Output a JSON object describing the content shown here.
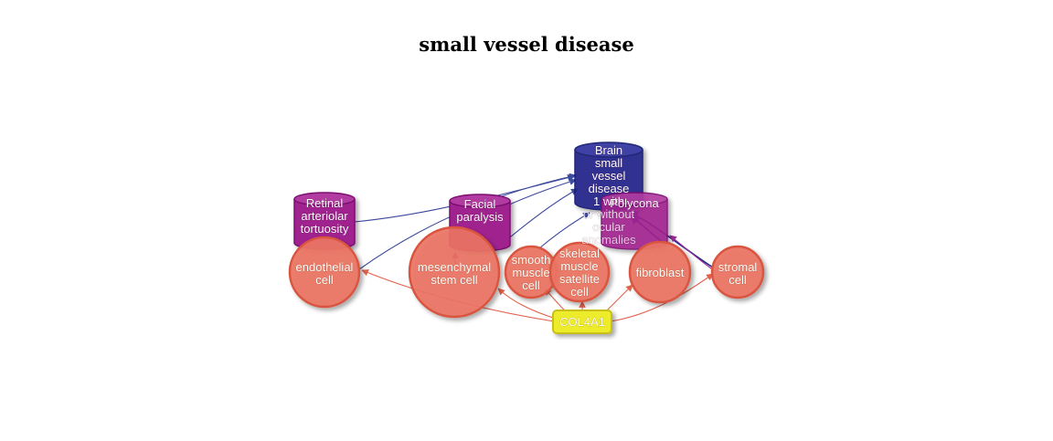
{
  "title": "small vessel disease",
  "colors": {
    "phenotype_fill": "#a0208f",
    "disease_fill": "#25288c",
    "cell_fill": "#ec7464",
    "cell_stroke": "#d9553f",
    "gene_fill": "#ecec2c",
    "edge_blue": "#3d4a9c",
    "edge_red": "#e0624d",
    "edge_purple": "#9a2a98"
  },
  "nodes": {
    "retinal": {
      "lines": [
        "Retinal",
        "arteriolar",
        "tortuosity"
      ],
      "type": "phenotype"
    },
    "facial": {
      "lines": [
        "Facial",
        "paralysis"
      ],
      "type": "phenotype"
    },
    "brain": {
      "lines": [
        "Brain",
        "small",
        "vessel",
        "disease",
        "1 with",
        "or without",
        "ocular",
        "anomalies"
      ],
      "type": "disease"
    },
    "polycona": {
      "lines": [
        "Polycona"
      ],
      "type": "phenotype"
    },
    "endothelial": {
      "lines": [
        "endothelial",
        "cell"
      ],
      "type": "cell"
    },
    "mesenchymal": {
      "lines": [
        "mesenchymal",
        "stem cell"
      ],
      "type": "cell"
    },
    "smooth": {
      "lines": [
        "smooth",
        "muscle",
        "cell"
      ],
      "type": "cell"
    },
    "skeletal": {
      "lines": [
        "skeletal",
        "muscle",
        "satellite",
        "cell"
      ],
      "type": "cell"
    },
    "fibroblast": {
      "lines": [
        "fibroblast"
      ],
      "type": "cell"
    },
    "stromal": {
      "lines": [
        "stromal",
        "cell"
      ],
      "type": "cell"
    },
    "gene": {
      "lines": [
        "COL4A1"
      ],
      "type": "gene"
    }
  }
}
